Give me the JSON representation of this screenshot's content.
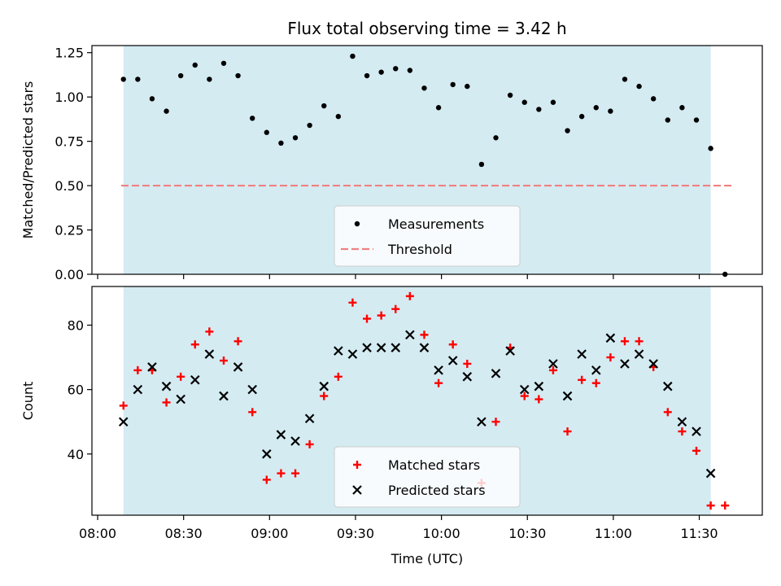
{
  "chart_data": {
    "title": "Flux total observing time = 3.42 h",
    "xlabel": "Time (UTC)",
    "x_ticks": [
      "08:00",
      "08:30",
      "09:00",
      "09:30",
      "10:00",
      "10:30",
      "11:00",
      "11:30"
    ],
    "observing_window": {
      "start": "08:09",
      "end": "11:34",
      "color": "#add8e6"
    },
    "grid": false,
    "panels": [
      {
        "type": "scatter",
        "ylabel": "Matched/Predicted stars",
        "ylim": [
          0,
          1.29
        ],
        "y_ticks": [
          "0.00",
          "0.25",
          "0.50",
          "0.75",
          "1.00",
          "1.25"
        ],
        "legend_placement": "lower-center",
        "threshold": {
          "name": "Threshold",
          "value": 0.5,
          "color": "#f08080",
          "style": "dashed"
        },
        "series": [
          {
            "name": "Measurements",
            "color": "#000000",
            "marker": "dot",
            "x": [
              "08:09",
              "08:14",
              "08:19",
              "08:24",
              "08:29",
              "08:34",
              "08:39",
              "08:44",
              "08:49",
              "08:54",
              "08:59",
              "09:04",
              "09:09",
              "09:14",
              "09:19",
              "09:24",
              "09:29",
              "09:34",
              "09:39",
              "09:44",
              "09:49",
              "09:54",
              "09:59",
              "10:04",
              "10:09",
              "10:14",
              "10:19",
              "10:24",
              "10:29",
              "10:34",
              "10:39",
              "10:44",
              "10:49",
              "10:54",
              "10:59",
              "11:04",
              "11:09",
              "11:14",
              "11:19",
              "11:24",
              "11:29",
              "11:34",
              "11:39"
            ],
            "y": [
              1.1,
              1.1,
              0.99,
              0.92,
              1.12,
              1.18,
              1.1,
              1.19,
              1.12,
              0.88,
              0.8,
              0.74,
              0.77,
              0.84,
              0.95,
              0.89,
              1.23,
              1.12,
              1.14,
              1.16,
              1.15,
              1.05,
              0.94,
              1.07,
              1.06,
              0.62,
              0.77,
              1.01,
              0.97,
              0.93,
              0.97,
              0.81,
              0.89,
              0.94,
              0.92,
              1.1,
              1.06,
              0.99,
              0.87,
              0.94,
              0.87,
              0.71,
              0.0
            ]
          }
        ]
      },
      {
        "type": "scatter",
        "ylabel": "Count",
        "ylim": [
          21,
          92
        ],
        "y_ticks": [
          "40",
          "60",
          "80"
        ],
        "legend_placement": "lower-center",
        "series": [
          {
            "name": "Matched stars",
            "color": "#ff0000",
            "marker": "plus",
            "x": [
              "08:09",
              "08:14",
              "08:19",
              "08:24",
              "08:29",
              "08:34",
              "08:39",
              "08:44",
              "08:49",
              "08:54",
              "08:59",
              "09:04",
              "09:09",
              "09:14",
              "09:19",
              "09:24",
              "09:29",
              "09:34",
              "09:39",
              "09:44",
              "09:49",
              "09:54",
              "09:59",
              "10:04",
              "10:09",
              "10:14",
              "10:19",
              "10:24",
              "10:29",
              "10:34",
              "10:39",
              "10:44",
              "10:49",
              "10:54",
              "10:59",
              "11:04",
              "11:09",
              "11:14",
              "11:19",
              "11:24",
              "11:29",
              "11:34",
              "11:39"
            ],
            "y": [
              55,
              66,
              66,
              56,
              64,
              74,
              78,
              69,
              75,
              53,
              32,
              34,
              34,
              43,
              58,
              64,
              87,
              82,
              83,
              85,
              89,
              77,
              62,
              74,
              68,
              31,
              50,
              73,
              58,
              57,
              66,
              47,
              63,
              62,
              70,
              75,
              75,
              67,
              53,
              47,
              41,
              24,
              24
            ]
          },
          {
            "name": "Predicted stars",
            "color": "#000000",
            "marker": "x",
            "x": [
              "08:09",
              "08:14",
              "08:19",
              "08:24",
              "08:29",
              "08:34",
              "08:39",
              "08:44",
              "08:49",
              "08:54",
              "08:59",
              "09:04",
              "09:09",
              "09:14",
              "09:19",
              "09:24",
              "09:29",
              "09:34",
              "09:39",
              "09:44",
              "09:49",
              "09:54",
              "09:59",
              "10:04",
              "10:09",
              "10:14",
              "10:19",
              "10:24",
              "10:29",
              "10:34",
              "10:39",
              "10:44",
              "10:49",
              "10:54",
              "10:59",
              "11:04",
              "11:09",
              "11:14",
              "11:19",
              "11:24",
              "11:29",
              "11:34"
            ],
            "y": [
              50,
              60,
              67,
              61,
              57,
              63,
              71,
              58,
              67,
              60,
              40,
              46,
              44,
              51,
              61,
              72,
              71,
              73,
              73,
              73,
              77,
              73,
              66,
              69,
              64,
              50,
              65,
              72,
              60,
              61,
              68,
              58,
              71,
              66,
              76,
              68,
              71,
              68,
              61,
              50,
              47,
              34
            ]
          }
        ]
      }
    ]
  }
}
